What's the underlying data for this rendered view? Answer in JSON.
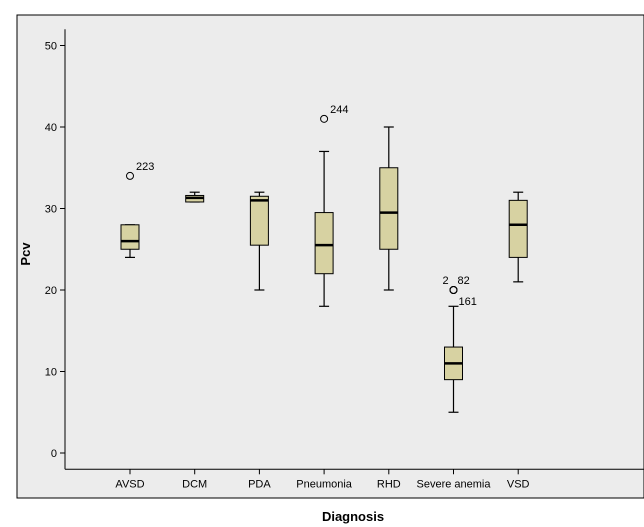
{
  "chart_data": {
    "type": "boxplot",
    "xlabel": "Diagnosis",
    "ylabel": "Pcv",
    "ylim": [
      -2,
      52
    ],
    "yticks": [
      0,
      10,
      20,
      30,
      40,
      50
    ],
    "grid": false,
    "colors": {
      "plot_bg": "#ececec",
      "box_fill": "#d7d2a2",
      "stroke": "#000000"
    },
    "categories": [
      "AVSD",
      "DCM",
      "PDA",
      "Pneumonia",
      "RHD",
      "Severe anemia",
      "VSD"
    ],
    "boxes": [
      {
        "category": "AVSD",
        "min": 24,
        "q1": 25,
        "median": 26,
        "q3": 28,
        "max": 28,
        "outliers": [
          {
            "value": 34,
            "label": "223",
            "marker": "circle"
          }
        ]
      },
      {
        "category": "DCM",
        "min": 30.8,
        "q1": 30.8,
        "median": 31.3,
        "q3": 31.6,
        "max": 32,
        "outliers": []
      },
      {
        "category": "PDA",
        "min": 20,
        "q1": 25.5,
        "median": 31,
        "q3": 31.5,
        "max": 32,
        "outliers": []
      },
      {
        "category": "Pneumonia",
        "min": 18,
        "q1": 22,
        "median": 25.5,
        "q3": 29.5,
        "max": 37,
        "outliers": [
          {
            "value": 41,
            "label": "244",
            "marker": "circle"
          }
        ]
      },
      {
        "category": "RHD",
        "min": 20,
        "q1": 25,
        "median": 29.5,
        "q3": 35,
        "max": 40,
        "outliers": []
      },
      {
        "category": "Severe anemia",
        "min": 5,
        "q1": 9,
        "median": 11,
        "q3": 13,
        "max": 18,
        "outliers": [
          {
            "value": 20,
            "label": "2",
            "marker": "circle"
          },
          {
            "value": 20,
            "label": "82",
            "marker": "circle"
          },
          {
            "value": 19,
            "label": "161",
            "marker": "circle"
          }
        ]
      },
      {
        "category": "VSD",
        "min": 21,
        "q1": 24,
        "median": 28,
        "q3": 31,
        "max": 32,
        "outliers": []
      }
    ]
  }
}
